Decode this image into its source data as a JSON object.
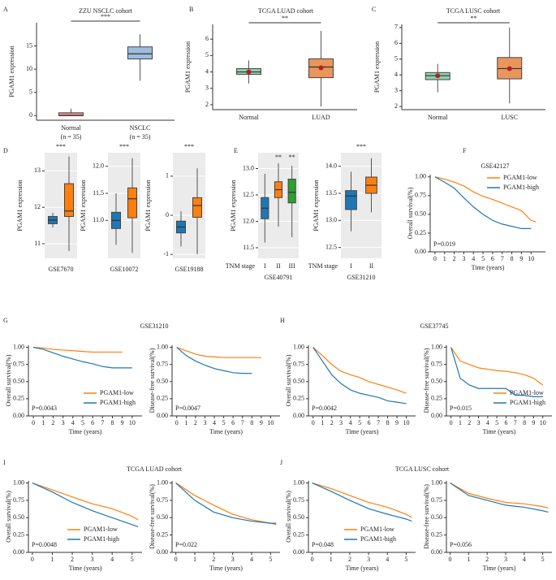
{
  "chart_data": [
    {
      "type": "box",
      "panel": "A",
      "title": "ZZU NSCLC cohort",
      "y_label": "PGAM1 expression",
      "categories": [
        "Normal",
        "NSCLC"
      ],
      "sublabels": [
        "(n = 35)",
        "(n = 35)"
      ],
      "boxes": [
        [
          0,
          0,
          0,
          0.6,
          1.5
        ],
        [
          7.5,
          12.2,
          13.3,
          14.8,
          17.5
        ]
      ],
      "colors": [
        "#ee8a8c",
        "#9dbde0"
      ],
      "ylim": [
        -1,
        20
      ],
      "yticks": [
        0,
        5,
        10,
        15
      ],
      "significance": "***",
      "bracket": true
    },
    {
      "type": "box",
      "panel": "B",
      "title": "TCGA LUAD cohort",
      "y_label": "PGAM1 expression",
      "categories": [
        "Normal",
        "LUAD"
      ],
      "boxes": [
        [
          3.3,
          3.85,
          4.0,
          4.2,
          4.7
        ],
        [
          1.9,
          3.65,
          4.3,
          4.8,
          6.5
        ]
      ],
      "means": [
        4.0,
        4.25
      ],
      "mean_color": "#b22222",
      "colors": [
        "#8fd1ad",
        "#e9955c"
      ],
      "ylim": [
        1.7,
        6.9
      ],
      "yticks": [
        2,
        3,
        4,
        5,
        6
      ],
      "significance": "**",
      "bracket": true
    },
    {
      "type": "box",
      "panel": "C",
      "title": "TCGA LUSC cohort",
      "y_label": "PGAM1 expression",
      "categories": [
        "Normal",
        "LUSC"
      ],
      "boxes": [
        [
          2.9,
          3.7,
          3.95,
          4.15,
          4.7
        ],
        [
          2.2,
          3.75,
          4.4,
          5.1,
          7.0
        ]
      ],
      "means": [
        3.95,
        4.4
      ],
      "mean_color": "#b22222",
      "colors": [
        "#8fd1ad",
        "#e9955c"
      ],
      "ylim": [
        1.8,
        7.2
      ],
      "yticks": [
        2,
        3,
        4,
        5,
        6,
        7
      ],
      "significance": "**",
      "bracket": true
    },
    {
      "type": "box",
      "panel": "D",
      "y_label": "PGAM1 expression",
      "x_label": "GSE7670",
      "boxes": [
        [
          11.45,
          11.55,
          11.65,
          11.75,
          11.85
        ],
        [
          10.8,
          11.75,
          11.9,
          12.65,
          13.4
        ]
      ],
      "colors": [
        "#1f77b4",
        "#ff7f0e"
      ],
      "ylim": [
        10.6,
        13.5
      ],
      "yticks": [
        11,
        12,
        13
      ],
      "significance": "***",
      "panel_background": "#ebebeb",
      "grid": true
    },
    {
      "type": "box",
      "y_label": "PGAM1 expression",
      "x_label": "GSE10072",
      "boxes": [
        [
          10.55,
          10.85,
          11.0,
          11.15,
          11.5
        ],
        [
          10.4,
          11.05,
          11.4,
          11.6,
          12.15
        ]
      ],
      "colors": [
        "#1f77b4",
        "#ff7f0e"
      ],
      "ylim": [
        10.3,
        12.25
      ],
      "yticks": [
        {
          "value": 11,
          "label": "11.0"
        },
        11.5,
        {
          "value": 12,
          "label": "12.0"
        }
      ],
      "significance": "***",
      "panel_background": "#ebebeb",
      "grid": true
    },
    {
      "type": "box",
      "y_label": "PGAM1 expression",
      "x_label": "GSE19188",
      "boxes": [
        [
          -0.8,
          -0.45,
          -0.3,
          -0.15,
          0.1
        ],
        [
          -1.0,
          -0.05,
          0.25,
          0.45,
          1.2
        ]
      ],
      "colors": [
        "#1f77b4",
        "#ff7f0e"
      ],
      "ylim": [
        -1.1,
        1.6
      ],
      "yticks": [
        -1,
        0,
        1
      ],
      "significance": "***",
      "panel_background": "#ebebeb",
      "grid": true
    },
    {
      "type": "box",
      "panel": "E",
      "y_label": "PGAM1 expression",
      "x_label": "GSE40791",
      "x_prefix": "TNM stage",
      "categories": [
        "I",
        "II",
        "III"
      ],
      "boxes": [
        [
          11.6,
          12.05,
          12.25,
          12.45,
          12.9
        ],
        [
          11.9,
          12.45,
          12.6,
          12.75,
          13.1
        ],
        [
          11.7,
          12.35,
          12.55,
          12.8,
          13.05
        ]
      ],
      "colors": [
        "#1f77b4",
        "#ff7f0e",
        "#2ca02c"
      ],
      "ylim": [
        11.3,
        13.3
      ],
      "yticks": [
        11.5,
        {
          "value": 12,
          "label": "12.0"
        },
        12.5,
        {
          "value": 13,
          "label": "13.0"
        }
      ],
      "significance": [
        null,
        "**",
        "**"
      ],
      "panel_background": "#ebebeb",
      "grid": true
    },
    {
      "type": "box",
      "y_label": "PGAM1 expression",
      "x_label": "GSE31210",
      "x_prefix": "TNM stage",
      "categories": [
        "I",
        "II"
      ],
      "boxes": [
        [
          12.8,
          13.2,
          13.45,
          13.55,
          13.9
        ],
        [
          13.15,
          13.5,
          13.65,
          13.8,
          14.15
        ]
      ],
      "colors": [
        "#1f77b4",
        "#ff7f0e"
      ],
      "ylim": [
        12.3,
        14.25
      ],
      "yticks": [
        12.5,
        {
          "value": 13,
          "label": "13.0"
        },
        13.5,
        {
          "value": 14,
          "label": "14.0"
        }
      ],
      "significance": "***",
      "panel_background": "#ebebeb",
      "grid": true
    },
    {
      "type": "line",
      "panel": "F",
      "title": "GSE42127",
      "y_label": "Overall survival(%)",
      "x_label": "Time (years)",
      "p_value": "P=0.019",
      "legend": "upper right",
      "x": [
        0,
        1,
        2,
        3,
        4,
        5,
        6,
        7,
        8,
        9,
        10,
        10.5
      ],
      "series": [
        {
          "name": "PGAM1-low",
          "color": "#ff7f0e",
          "values": [
            1,
            0.97,
            0.93,
            0.88,
            0.8,
            0.74,
            0.7,
            0.65,
            0.6,
            0.55,
            0.42,
            0.4
          ]
        },
        {
          "name": "PGAM1-high",
          "color": "#1f77b4",
          "values": [
            1,
            0.93,
            0.85,
            0.72,
            0.6,
            0.5,
            0.42,
            0.37,
            0.34,
            0.31,
            0.31,
            null
          ]
        }
      ],
      "xlim": [
        -0.5,
        11.5
      ],
      "xticks": [
        0,
        1,
        2,
        3,
        4,
        5,
        6,
        7,
        8,
        9,
        10
      ],
      "ylim": [
        0,
        1.03
      ],
      "yticks": [
        {
          "value": 0,
          "label": "0.00"
        },
        0.25,
        {
          "value": 0.5,
          "label": "0.50"
        },
        0.75,
        {
          "value": 1,
          "label": "1.00"
        }
      ]
    },
    {
      "type": "line",
      "panel": "G",
      "title": "GSE31210",
      "y_label": "Overall survival(%)",
      "x_label": "Time (years)",
      "p_value": "P=0.0043",
      "legend": "lower right",
      "x": [
        0,
        1,
        2,
        3,
        4,
        5,
        6,
        7,
        8,
        9,
        10
      ],
      "series": [
        {
          "name": "PGAM1-low",
          "color": "#ff7f0e",
          "values": [
            1,
            0.99,
            0.97,
            0.96,
            0.95,
            0.94,
            0.93,
            0.93,
            0.93,
            0.93,
            null
          ]
        },
        {
          "name": "PGAM1-high",
          "color": "#1f77b4",
          "values": [
            1,
            0.97,
            0.92,
            0.87,
            0.83,
            0.79,
            0.76,
            0.72,
            0.7,
            0.7,
            0.7
          ]
        }
      ],
      "xlim": [
        -0.5,
        11
      ],
      "xticks": [
        0,
        1,
        2,
        3,
        4,
        5,
        6,
        7,
        8,
        9,
        10
      ],
      "ylim": [
        0,
        1.03
      ],
      "yticks": [
        {
          "value": 0,
          "label": "0.00"
        },
        0.25,
        {
          "value": 0.5,
          "label": "0.50"
        },
        0.75,
        {
          "value": 1,
          "label": "1.00"
        }
      ]
    },
    {
      "type": "line",
      "y_label": "Disease-free survival(%)",
      "x_label": "Time (years)",
      "p_value": "P=0.0047",
      "x": [
        0,
        1,
        2,
        3,
        4,
        5,
        6,
        7,
        8,
        9,
        10
      ],
      "series": [
        {
          "color": "#ff7f0e",
          "values": [
            1,
            0.95,
            0.9,
            0.87,
            0.86,
            0.85,
            0.85,
            0.85,
            0.85,
            0.85,
            null
          ]
        },
        {
          "color": "#1f77b4",
          "values": [
            1,
            0.88,
            0.8,
            0.74,
            0.69,
            0.66,
            0.63,
            0.62,
            0.62,
            null,
            null
          ]
        }
      ],
      "xlim": [
        -0.5,
        11
      ],
      "xticks": [
        0,
        1,
        2,
        3,
        4,
        5,
        6,
        7,
        8,
        9,
        10
      ],
      "ylim": [
        0,
        1.03
      ],
      "yticks": [
        {
          "value": 0,
          "label": "0.00"
        },
        0.25,
        {
          "value": 0.5,
          "label": "0.50"
        },
        0.75,
        {
          "value": 1,
          "label": "1.00"
        }
      ]
    },
    {
      "type": "line",
      "panel": "H",
      "title": "GSE37745",
      "y_label": "Overall survival(%)",
      "x_label": "Time (years)",
      "p_value": "P=0.0042",
      "x": [
        0,
        1,
        2,
        3,
        4,
        5,
        6,
        7,
        8,
        9,
        10
      ],
      "series": [
        {
          "color": "#ff7f0e",
          "values": [
            1,
            0.88,
            0.75,
            0.65,
            0.6,
            0.56,
            0.5,
            0.46,
            0.42,
            0.38,
            0.33
          ]
        },
        {
          "color": "#1f77b4",
          "values": [
            1,
            0.8,
            0.6,
            0.47,
            0.38,
            0.33,
            0.3,
            0.27,
            0.22,
            0.2,
            0.18
          ]
        }
      ],
      "xlim": [
        -0.5,
        11
      ],
      "xticks": [
        0,
        1,
        2,
        3,
        4,
        5,
        6,
        7,
        8,
        9,
        10
      ],
      "ylim": [
        0,
        1.03
      ],
      "yticks": [
        {
          "value": 0,
          "label": "0.00"
        },
        0.25,
        {
          "value": 0.5,
          "label": "0.50"
        },
        0.75,
        {
          "value": 1,
          "label": "1.00"
        }
      ]
    },
    {
      "type": "line",
      "y_label": "Disease-free survival(%)",
      "x_label": "Time (years)",
      "p_value": "P=0.015",
      "legend": "lower right",
      "x": [
        0,
        1,
        2,
        3,
        4,
        5,
        6,
        7,
        8,
        9,
        10
      ],
      "series": [
        {
          "name": "PGAM1-low",
          "color": "#ff7f0e",
          "values": [
            1,
            0.8,
            0.75,
            0.7,
            0.68,
            0.66,
            0.65,
            0.63,
            0.6,
            0.55,
            0.45
          ]
        },
        {
          "name": "PGAM1-high",
          "color": "#1f77b4",
          "values": [
            1,
            0.55,
            0.45,
            0.4,
            0.4,
            0.4,
            0.4,
            0.3,
            0.3,
            0.28,
            0.28
          ]
        }
      ],
      "xlim": [
        -0.5,
        11
      ],
      "xticks": [
        0,
        1,
        2,
        3,
        4,
        5,
        6,
        7,
        8,
        9,
        10
      ],
      "ylim": [
        0,
        1.03
      ],
      "yticks": [
        {
          "value": 0,
          "label": "0.00"
        },
        0.25,
        {
          "value": 0.5,
          "label": "0.50"
        },
        0.75,
        {
          "value": 1,
          "label": "1.00"
        }
      ]
    },
    {
      "type": "line",
      "panel": "I",
      "title": "TCGA LUAD cohort",
      "y_label": "Overall survival(%)",
      "x_label": "Time (years)",
      "p_value": "P=0.0048",
      "legend": "lower center",
      "x": [
        0,
        1,
        2,
        3,
        4,
        5,
        5.3
      ],
      "series": [
        {
          "name": "PGAM1-low",
          "color": "#ff7f0e",
          "values": [
            1,
            0.9,
            0.8,
            0.7,
            0.63,
            0.52,
            0.47
          ]
        },
        {
          "name": "PGAM1-high",
          "color": "#1f77b4",
          "values": [
            1,
            0.87,
            0.72,
            0.6,
            0.5,
            0.4,
            0.37
          ]
        }
      ],
      "xlim": [
        -0.2,
        5.5
      ],
      "xticks": [
        0,
        1,
        2,
        3,
        4,
        5
      ],
      "ylim": [
        0,
        1.03
      ],
      "yticks": [
        {
          "value": 0,
          "label": "0.00"
        },
        0.25,
        {
          "value": 0.5,
          "label": "0.50"
        },
        0.75,
        {
          "value": 1,
          "label": "1.00"
        }
      ]
    },
    {
      "type": "line",
      "y_label": "Disease-free survival(%)",
      "x_label": "Time (years)",
      "p_value": "P=0.022",
      "x": [
        0,
        1,
        2,
        3,
        4,
        5,
        5.3
      ],
      "series": [
        {
          "color": "#ff7f0e",
          "values": [
            1,
            0.82,
            0.68,
            0.55,
            0.47,
            0.42,
            0.4
          ]
        },
        {
          "color": "#1f77b4",
          "values": [
            1,
            0.75,
            0.58,
            0.5,
            0.45,
            0.42,
            0.42
          ]
        }
      ],
      "xlim": [
        -0.2,
        5.5
      ],
      "xticks": [
        0,
        1,
        2,
        3,
        4,
        5
      ],
      "ylim": [
        0,
        1.03
      ],
      "yticks": [
        {
          "value": 0,
          "label": "0.00"
        },
        0.25,
        {
          "value": 0.5,
          "label": "0.50"
        },
        0.75,
        {
          "value": 1,
          "label": "1.00"
        }
      ]
    },
    {
      "type": "line",
      "panel": "J",
      "title": "TCGA LUSC cohort",
      "y_label": "Overall survival(%)",
      "x_label": "Time (years)",
      "p_value": "P=0.048",
      "legend": "lower center",
      "x": [
        0,
        1,
        2,
        3,
        4,
        5,
        5.3
      ],
      "series": [
        {
          "name": "PGAM1-low",
          "color": "#ff7f0e",
          "values": [
            1,
            0.92,
            0.82,
            0.72,
            0.65,
            0.55,
            0.5
          ]
        },
        {
          "name": "PGAM1-high",
          "color": "#1f77b4",
          "values": [
            1,
            0.88,
            0.75,
            0.63,
            0.55,
            0.48,
            0.45
          ]
        }
      ],
      "xlim": [
        -0.2,
        5.5
      ],
      "xticks": [
        0,
        1,
        2,
        3,
        4,
        5
      ],
      "ylim": [
        0,
        1.03
      ],
      "yticks": [
        {
          "value": 0,
          "label": "0.00"
        },
        0.25,
        {
          "value": 0.5,
          "label": "0.50"
        },
        0.75,
        {
          "value": 1,
          "label": "1.00"
        }
      ]
    },
    {
      "type": "line",
      "y_label": "Disease-free survival(%)",
      "x_label": "Time (years)",
      "p_value": "P=0.056",
      "x": [
        0,
        1,
        2,
        3,
        4,
        5,
        5.3
      ],
      "series": [
        {
          "color": "#ff7f0e",
          "values": [
            1,
            0.85,
            0.78,
            0.72,
            0.7,
            0.66,
            0.64
          ]
        },
        {
          "color": "#1f77b4",
          "values": [
            1,
            0.82,
            0.75,
            0.68,
            0.65,
            0.6,
            0.58
          ]
        }
      ],
      "xlim": [
        -0.2,
        5.5
      ],
      "xticks": [
        0,
        1,
        2,
        3,
        4,
        5
      ],
      "ylim": [
        0,
        1.03
      ],
      "yticks": [
        {
          "value": 0,
          "label": "0.00"
        },
        0.25,
        {
          "value": 0.5,
          "label": "0.50"
        },
        0.75,
        {
          "value": 1,
          "label": "1.00"
        }
      ]
    }
  ]
}
